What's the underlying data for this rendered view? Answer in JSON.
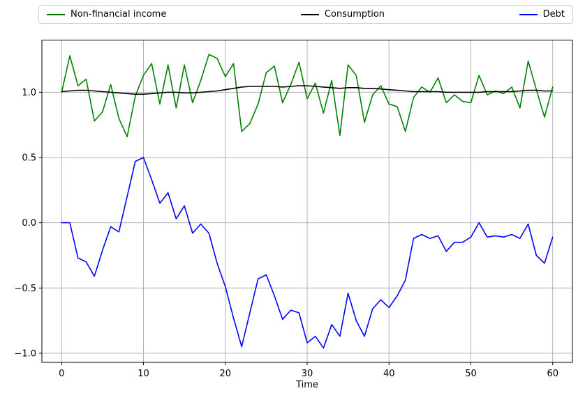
{
  "chart_data": {
    "type": "line",
    "title": "",
    "xlabel": "Time",
    "ylabel": "",
    "grid": true,
    "legend_position": "top-outside-horizontal",
    "background_color": "#ffffff",
    "grid_color": "#b0b0b0",
    "spine_color": "#000000",
    "xlim": [
      -2.41,
      62.41
    ],
    "ylim": [
      -1.07,
      1.4
    ],
    "xticks": [
      0,
      10,
      20,
      30,
      40,
      50,
      60
    ],
    "xtick_labels": [
      "0",
      "10",
      "20",
      "30",
      "40",
      "50",
      "60"
    ],
    "yticks": [
      -1.0,
      -0.5,
      0.0,
      0.5,
      1.0
    ],
    "ytick_labels": [
      "−1.0",
      "−0.5",
      "0.0",
      "0.5",
      "1.0"
    ],
    "x": [
      0,
      1,
      2,
      3,
      4,
      5,
      6,
      7,
      8,
      9,
      10,
      11,
      12,
      13,
      14,
      15,
      16,
      17,
      18,
      19,
      20,
      21,
      22,
      23,
      24,
      25,
      26,
      27,
      28,
      29,
      30,
      31,
      32,
      33,
      34,
      35,
      36,
      37,
      38,
      39,
      40,
      41,
      42,
      43,
      44,
      45,
      46,
      47,
      48,
      49,
      50,
      51,
      52,
      53,
      54,
      55,
      56,
      57,
      58,
      59,
      60
    ],
    "series": [
      {
        "name": "Non-financial income",
        "color": "#008000",
        "values": [
          1.0,
          1.28,
          1.05,
          1.1,
          0.78,
          0.85,
          1.06,
          0.8,
          0.66,
          0.97,
          1.13,
          1.22,
          0.91,
          1.21,
          0.88,
          1.21,
          0.92,
          1.09,
          1.29,
          1.26,
          1.12,
          1.22,
          0.7,
          0.76,
          0.91,
          1.15,
          1.2,
          0.92,
          1.06,
          1.23,
          0.95,
          1.07,
          0.84,
          1.09,
          0.67,
          1.21,
          1.13,
          0.77,
          0.98,
          1.05,
          0.91,
          0.89,
          0.7,
          0.96,
          1.04,
          1.0,
          1.11,
          0.92,
          0.98,
          0.93,
          0.92,
          1.13,
          0.98,
          1.01,
          0.99,
          1.04,
          0.88,
          1.24,
          1.02,
          0.81,
          1.04
        ]
      },
      {
        "name": "Consumption",
        "color": "#000000",
        "values": [
          1.005,
          1.01,
          1.015,
          1.015,
          1.01,
          1.005,
          1.0,
          0.995,
          0.99,
          0.985,
          0.985,
          0.99,
          0.995,
          1.0,
          1.0,
          0.995,
          0.995,
          1.0,
          1.005,
          1.01,
          1.02,
          1.03,
          1.04,
          1.045,
          1.045,
          1.045,
          1.045,
          1.04,
          1.045,
          1.05,
          1.05,
          1.045,
          1.04,
          1.035,
          1.03,
          1.035,
          1.035,
          1.03,
          1.03,
          1.025,
          1.02,
          1.015,
          1.01,
          1.005,
          1.005,
          1.005,
          1.005,
          1.0,
          1.0,
          1.0,
          1.0,
          1.0,
          1.005,
          1.005,
          1.005,
          1.005,
          1.01,
          1.015,
          1.015,
          1.01,
          1.01
        ]
      },
      {
        "name": "Debt",
        "color": "#0000ff",
        "values": [
          0.0,
          0.0,
          -0.27,
          -0.3,
          -0.41,
          -0.21,
          -0.03,
          -0.07,
          0.2,
          0.47,
          0.5,
          0.33,
          0.15,
          0.23,
          0.03,
          0.13,
          -0.08,
          -0.01,
          -0.08,
          -0.31,
          -0.49,
          -0.73,
          -0.95,
          -0.69,
          -0.43,
          -0.4,
          -0.56,
          -0.74,
          -0.67,
          -0.69,
          -0.92,
          -0.87,
          -0.96,
          -0.78,
          -0.87,
          -0.54,
          -0.75,
          -0.87,
          -0.66,
          -0.59,
          -0.65,
          -0.56,
          -0.44,
          -0.12,
          -0.09,
          -0.12,
          -0.1,
          -0.22,
          -0.15,
          -0.15,
          -0.11,
          0.0,
          -0.11,
          -0.1,
          -0.11,
          -0.09,
          -0.12,
          -0.01,
          -0.25,
          -0.31,
          -0.11
        ]
      }
    ]
  },
  "legend": {
    "items": [
      {
        "label": "Non-financial income",
        "color": "#008000"
      },
      {
        "label": "Consumption",
        "color": "#000000"
      },
      {
        "label": "Debt",
        "color": "#0000ff"
      }
    ]
  }
}
